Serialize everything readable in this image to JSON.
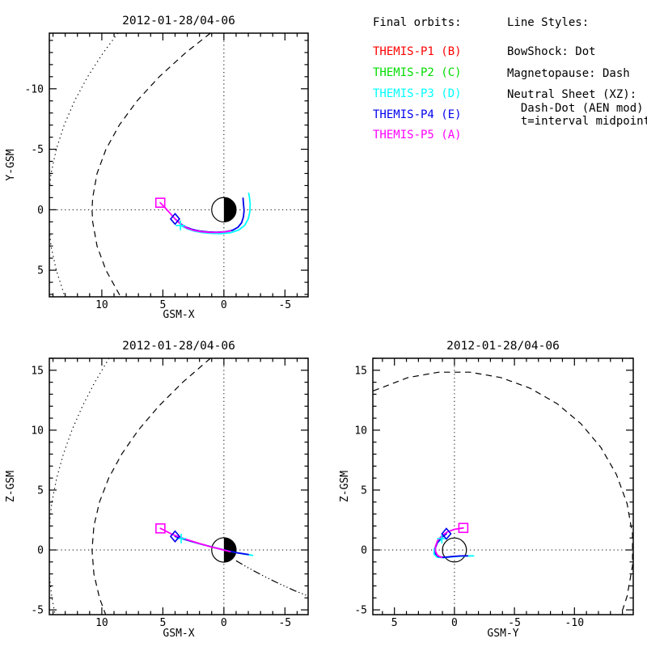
{
  "legend": {
    "final_orbits_label": "Final orbits:",
    "entries": [
      {
        "label": "THEMIS-P1 (B)",
        "color": "#ff0000"
      },
      {
        "label": "THEMIS-P2 (C)",
        "color": "#00dd00"
      },
      {
        "label": "THEMIS-P3 (D)",
        "color": "#00ffff"
      },
      {
        "label": "THEMIS-P4 (E)",
        "color": "#0000ee"
      },
      {
        "label": "THEMIS-P5 (A)",
        "color": "#ff00ff"
      }
    ],
    "line_styles_label": "Line Styles:",
    "line_styles": [
      "BowShock: Dot",
      "Magnetopause: Dash",
      "Neutral Sheet (XZ):",
      "  Dash-Dot (AEN mod)",
      "  t=interval midpoint"
    ]
  },
  "chart_data": [
    {
      "id": "xy",
      "type": "line",
      "title": "2012-01-28/04-06",
      "xlabel": "GSM-X",
      "ylabel": "Y-GSM",
      "x_axis": {
        "left_value": 14.3,
        "right_value": -6.9,
        "major_ticks": [
          10,
          5,
          0,
          -5
        ],
        "minor_step": 1
      },
      "y_axis": {
        "top_value": -14.6,
        "bottom_value": 7.2,
        "major_ticks": [
          -10,
          -5,
          0,
          5
        ],
        "minor_step": 1
      },
      "crosshair": true,
      "earth": {
        "radius_re": 1,
        "style": "half-right-filled"
      },
      "boundaries": [
        {
          "name": "bow-shock",
          "style": "dot",
          "points": [
            [
              8.69,
              -14.6
            ],
            [
              9.87,
              -13
            ],
            [
              11.16,
              -11
            ],
            [
              12.23,
              -9
            ],
            [
              13.09,
              -7
            ],
            [
              13.73,
              -5
            ],
            [
              14.16,
              -3
            ],
            [
              14.37,
              -1
            ],
            [
              14.4,
              0
            ],
            [
              14.37,
              1
            ],
            [
              14.16,
              3
            ],
            [
              13.73,
              5
            ],
            [
              13.09,
              7
            ],
            [
              13.01,
              7.2
            ]
          ]
        },
        {
          "name": "magnetopause",
          "style": "dash",
          "points": [
            [
              1.1,
              -14.6
            ],
            [
              3.11,
              -13
            ],
            [
              5.29,
              -11
            ],
            [
              7.11,
              -9
            ],
            [
              8.57,
              -7
            ],
            [
              9.66,
              -5
            ],
            [
              10.39,
              -3
            ],
            [
              10.75,
              -1
            ],
            [
              10.8,
              0
            ],
            [
              10.75,
              1
            ],
            [
              10.39,
              3
            ],
            [
              9.66,
              5
            ],
            [
              8.57,
              7
            ],
            [
              8.44,
              7.2
            ]
          ]
        }
      ],
      "orbits": [
        {
          "key": "p3",
          "name": "THEMIS-P3 (D)",
          "color": "#00ffff",
          "marker": "plus",
          "marker_at": [
            3.56,
            1.3
          ],
          "points": [
            [
              3.56,
              1.3
            ],
            [
              3.0,
              1.58
            ],
            [
              2.4,
              1.78
            ],
            [
              1.7,
              1.9
            ],
            [
              0.95,
              1.96
            ],
            [
              0.2,
              1.97
            ],
            [
              -0.55,
              1.9
            ],
            [
              -1.2,
              1.68
            ],
            [
              -1.7,
              1.3
            ],
            [
              -2.0,
              0.75
            ],
            [
              -2.13,
              0.15
            ],
            [
              -2.15,
              -0.5
            ],
            [
              -2.1,
              -1.0
            ],
            [
              -2.03,
              -1.36
            ]
          ]
        },
        {
          "key": "p4",
          "name": "THEMIS-P4 (E)",
          "color": "#0000ee",
          "marker": "diamond",
          "marker_at": [
            4.0,
            0.76
          ],
          "points": [
            [
              4.0,
              0.76
            ],
            [
              3.6,
              1.12
            ],
            [
              3.15,
              1.42
            ],
            [
              2.6,
              1.62
            ],
            [
              2.0,
              1.76
            ],
            [
              1.3,
              1.84
            ],
            [
              0.6,
              1.86
            ],
            [
              -0.1,
              1.82
            ],
            [
              -0.7,
              1.7
            ],
            [
              -1.15,
              1.45
            ],
            [
              -1.45,
              1.08
            ],
            [
              -1.6,
              0.6
            ],
            [
              -1.65,
              0.05
            ],
            [
              -1.6,
              -0.5
            ],
            [
              -1.57,
              -0.96
            ]
          ]
        },
        {
          "key": "p5",
          "name": "THEMIS-P5 (A)",
          "color": "#ff00ff",
          "marker": "square",
          "marker_at": [
            5.21,
            -0.58
          ],
          "points": [
            [
              5.21,
              -0.58
            ],
            [
              4.8,
              -0.15
            ],
            [
              4.4,
              0.3
            ],
            [
              4.0,
              0.76
            ],
            [
              3.56,
              1.18
            ],
            [
              3.05,
              1.5
            ],
            [
              2.5,
              1.7
            ],
            [
              1.85,
              1.82
            ],
            [
              1.15,
              1.88
            ],
            [
              0.45,
              1.88
            ],
            [
              -0.2,
              1.82
            ],
            [
              -0.55,
              1.75
            ]
          ]
        }
      ]
    },
    {
      "id": "xz",
      "type": "line",
      "title": "2012-01-28/04-06",
      "xlabel": "GSM-X",
      "ylabel": "Z-GSM",
      "x_axis": {
        "left_value": 14.3,
        "right_value": -6.9,
        "major_ticks": [
          10,
          5,
          0,
          -5
        ],
        "minor_step": 1
      },
      "y_axis": {
        "top_value": 16.0,
        "bottom_value": -5.4,
        "major_ticks": [
          15,
          10,
          5,
          0,
          -5
        ],
        "minor_step": 1
      },
      "crosshair": true,
      "earth": {
        "radius_re": 1,
        "style": "half-right-filled"
      },
      "boundaries": [
        {
          "name": "bow-shock",
          "style": "dot",
          "points": [
            [
              9.41,
              16
            ],
            [
              10.58,
              14
            ],
            [
              11.59,
              12
            ],
            [
              12.45,
              10
            ],
            [
              13.15,
              8
            ],
            [
              13.7,
              6
            ],
            [
              14.09,
              4
            ],
            [
              14.32,
              2
            ],
            [
              14.4,
              0
            ],
            [
              14.32,
              -2
            ],
            [
              14.09,
              -4
            ],
            [
              13.81,
              -5.5
            ]
          ]
        },
        {
          "name": "magnetopause",
          "style": "dash",
          "points": [
            [
              1.1,
              16
            ],
            [
              3.37,
              14
            ],
            [
              5.34,
              12
            ],
            [
              7.01,
              10
            ],
            [
              8.37,
              8
            ],
            [
              9.44,
              6
            ],
            [
              10.19,
              4
            ],
            [
              10.65,
              2
            ],
            [
              10.8,
              0
            ],
            [
              10.65,
              -2
            ],
            [
              10.19,
              -4
            ],
            [
              9.65,
              -5.5
            ]
          ]
        },
        {
          "name": "neutral-sheet",
          "style": "dashdot",
          "points": [
            [
              -1.0,
              -0.9
            ],
            [
              -2.0,
              -1.5
            ],
            [
              -3.2,
              -2.15
            ],
            [
              -4.5,
              -2.8
            ],
            [
              -5.8,
              -3.4
            ],
            [
              -6.9,
              -3.85
            ]
          ]
        }
      ],
      "orbits": [
        {
          "key": "p3",
          "name": "THEMIS-P3 (D)",
          "color": "#00ffff",
          "marker": "plus",
          "marker_at": [
            3.5,
            0.95
          ],
          "points": [
            [
              3.5,
              0.95
            ],
            [
              2.5,
              0.66
            ],
            [
              1.5,
              0.38
            ],
            [
              0.5,
              0.12
            ],
            [
              -0.5,
              -0.12
            ],
            [
              -1.5,
              -0.32
            ],
            [
              -2.35,
              -0.45
            ]
          ]
        },
        {
          "key": "p4",
          "name": "THEMIS-P4 (E)",
          "color": "#0000ee",
          "marker": "diamond",
          "marker_at": [
            4.0,
            1.13
          ],
          "points": [
            [
              4.0,
              1.13
            ],
            [
              3.0,
              0.82
            ],
            [
              2.0,
              0.52
            ],
            [
              1.0,
              0.26
            ],
            [
              0.0,
              0.0
            ],
            [
              -1.0,
              -0.22
            ],
            [
              -2.0,
              -0.38
            ]
          ]
        },
        {
          "key": "p5",
          "name": "THEMIS-P5 (A)",
          "color": "#ff00ff",
          "marker": "square",
          "marker_at": [
            5.2,
            1.8
          ],
          "points": [
            [
              5.2,
              1.8
            ],
            [
              4.2,
              1.28
            ],
            [
              3.2,
              0.92
            ],
            [
              2.2,
              0.6
            ],
            [
              1.2,
              0.3
            ],
            [
              0.2,
              0.04
            ],
            [
              -0.5,
              -0.14
            ]
          ]
        }
      ]
    },
    {
      "id": "yz",
      "type": "line",
      "title": "2012-01-28/04-06",
      "xlabel": "GSM-Y",
      "ylabel": "Z-GSM",
      "x_axis": {
        "left_value": 6.8,
        "right_value": -14.9,
        "major_ticks": [
          5,
          0,
          -5,
          -10
        ],
        "minor_step": 1
      },
      "y_axis": {
        "top_value": 16.0,
        "bottom_value": -5.4,
        "major_ticks": [
          15,
          10,
          5,
          0,
          -5
        ],
        "minor_step": 1
      },
      "crosshair": true,
      "earth": {
        "radius_re": 1,
        "style": "outline"
      },
      "boundaries": [
        {
          "name": "magnetopause",
          "style": "dash",
          "points": [
            [
              6.76,
              13.28
            ],
            [
              3.86,
              14.39
            ],
            [
              1.3,
              14.84
            ],
            [
              -1.3,
              14.84
            ],
            [
              -3.86,
              14.39
            ],
            [
              -6.3,
              13.5
            ],
            [
              -8.55,
              12.21
            ],
            [
              -10.54,
              10.54
            ],
            [
              -12.21,
              8.55
            ],
            [
              -13.5,
              6.3
            ],
            [
              -14.39,
              3.86
            ],
            [
              -14.84,
              1.3
            ],
            [
              -14.84,
              -1.3
            ],
            [
              -14.39,
              -3.86
            ],
            [
              -13.82,
              -5.58
            ]
          ]
        }
      ],
      "orbits": [
        {
          "key": "p3",
          "name": "THEMIS-P3 (D)",
          "color": "#00ffff",
          "marker": "plus",
          "marker_at": [
            1.05,
            0.95
          ],
          "points": [
            [
              1.05,
              0.95
            ],
            [
              1.45,
              0.55
            ],
            [
              1.68,
              0.08
            ],
            [
              1.7,
              -0.35
            ],
            [
              1.45,
              -0.6
            ],
            [
              0.95,
              -0.65
            ],
            [
              0.3,
              -0.58
            ],
            [
              -0.5,
              -0.52
            ],
            [
              -1.6,
              -0.49
            ]
          ]
        },
        {
          "key": "p4",
          "name": "THEMIS-P4 (E)",
          "color": "#0000ee",
          "marker": "diamond",
          "marker_at": [
            0.67,
            1.35
          ],
          "points": [
            [
              0.67,
              1.35
            ],
            [
              1.1,
              1.02
            ],
            [
              1.42,
              0.6
            ],
            [
              1.6,
              0.15
            ],
            [
              1.58,
              -0.3
            ],
            [
              1.35,
              -0.55
            ],
            [
              0.9,
              -0.62
            ],
            [
              0.2,
              -0.55
            ],
            [
              -0.5,
              -0.5
            ],
            [
              -1.1,
              -0.49
            ]
          ]
        },
        {
          "key": "p5",
          "name": "THEMIS-P5 (A)",
          "color": "#ff00ff",
          "marker": "square",
          "marker_at": [
            -0.74,
            1.84
          ],
          "points": [
            [
              -0.74,
              1.84
            ],
            [
              0.0,
              1.72
            ],
            [
              0.6,
              1.5
            ],
            [
              1.05,
              1.18
            ],
            [
              1.4,
              0.78
            ],
            [
              1.58,
              0.32
            ],
            [
              1.58,
              -0.12
            ],
            [
              1.4,
              -0.45
            ],
            [
              1.05,
              -0.63
            ]
          ]
        }
      ]
    }
  ]
}
